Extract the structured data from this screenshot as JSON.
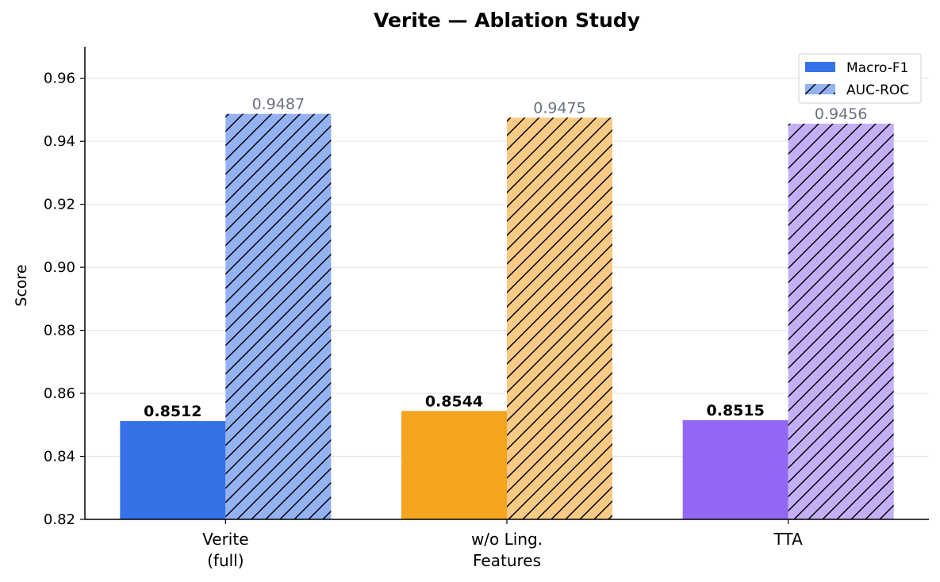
{
  "chart_data": {
    "type": "bar",
    "title": "Verite — Ablation Study",
    "xlabel": "",
    "ylabel": "Score",
    "ylim": [
      0.82,
      0.97
    ],
    "yticks": [
      0.82,
      0.84,
      0.86,
      0.88,
      0.9,
      0.92,
      0.94,
      0.96
    ],
    "ytick_labels": [
      "0.82",
      "0.84",
      "0.86",
      "0.88",
      "0.90",
      "0.92",
      "0.94",
      "0.96"
    ],
    "grid": "horizontal",
    "legend_position": "top-right",
    "categories": [
      [
        "Verite",
        "(full)"
      ],
      [
        "w/o Ling.",
        "Features"
      ],
      [
        "TTA"
      ]
    ],
    "category_colors": [
      {
        "solid": "#3572e8",
        "light": "#94b1f2"
      },
      {
        "solid": "#f5a41f",
        "light": "#f8ca85"
      },
      {
        "solid": "#9167f4",
        "light": "#c4aff7"
      }
    ],
    "series": [
      {
        "name": "Macro-F1",
        "values": [
          0.8512,
          0.8544,
          0.8515
        ],
        "labels": [
          "0.8512",
          "0.8544",
          "0.8515"
        ],
        "style": "solid",
        "legend_color": "#3572e8"
      },
      {
        "name": "AUC-ROC",
        "values": [
          0.9487,
          0.9475,
          0.9456
        ],
        "labels": [
          "0.9487",
          "0.9475",
          "0.9456"
        ],
        "style": "hatched",
        "legend_color": "#94b1f2"
      }
    ]
  }
}
